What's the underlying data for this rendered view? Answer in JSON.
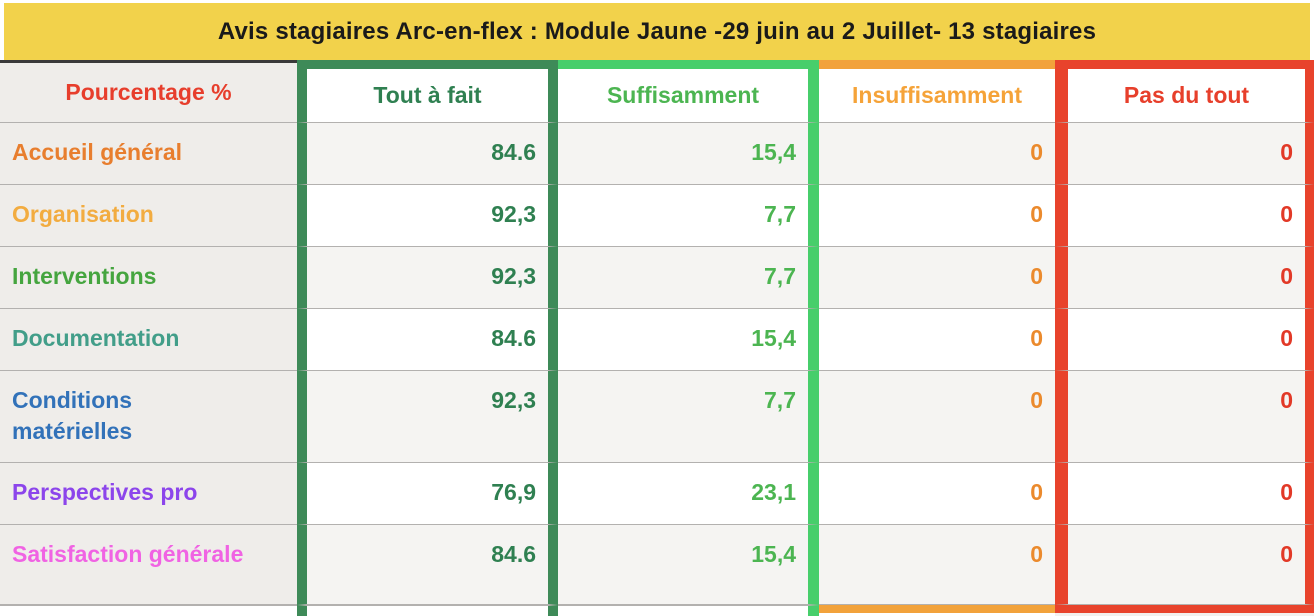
{
  "banner": {
    "title": "Avis stagiaires Arc-en-flex : Module Jaune -29 juin au 2 Juillet- 13 stagiaires",
    "bg_color": "#F2D24B",
    "text_color": "#1A1A1A"
  },
  "header": {
    "corner": {
      "label": "Pourcentage %",
      "text_color": "#E73E2C"
    },
    "columns": [
      {
        "label": "Tout à fait",
        "text_color": "#2F8051",
        "border_color": "#3E8A58"
      },
      {
        "label": "Suffisamment",
        "text_color": "#4CB551",
        "border_color": "#47CE6B"
      },
      {
        "label": "Insuffisamment",
        "text_color": "#F5A339",
        "border_color": "#F2A23B"
      },
      {
        "label": "Pas du tout",
        "text_color": "#E73F2B",
        "border_color": "#E8432C"
      }
    ]
  },
  "value_colors": [
    "#2F8051",
    "#4CB551",
    "#EB8A2D",
    "#E23927"
  ],
  "rows": [
    {
      "label": "Accueil général",
      "label_color": "#E87E2E",
      "values": [
        "84.6",
        "15,4",
        "0",
        "0"
      ]
    },
    {
      "label": "Organisation",
      "label_color": "#F2AC40",
      "values": [
        "92,3",
        "7,7",
        "0",
        "0"
      ]
    },
    {
      "label": "Interventions",
      "label_color": "#45A53F",
      "values": [
        "92,3",
        "7,7",
        "0",
        "0"
      ]
    },
    {
      "label": "Documentation",
      "label_color": "#429E89",
      "values": [
        "84.6",
        "15,4",
        "0",
        "0"
      ]
    },
    {
      "label": "Conditions matérielles",
      "label_color": "#3272B9",
      "values": [
        "92,3",
        "7,7",
        "0",
        "0"
      ]
    },
    {
      "label": "Perspectives pro",
      "label_color": "#8C45EB",
      "values": [
        "76,9",
        "23,1",
        "0",
        "0"
      ]
    },
    {
      "label": "Satisfaction générale",
      "label_color": "#F063E3",
      "values": [
        "84.6",
        "15,4",
        "0",
        "0"
      ]
    }
  ],
  "chart_data": {
    "type": "table",
    "title": "Avis stagiaires Arc-en-flex : Module Jaune -29 juin au 2 Juillet- 13 stagiaires",
    "unit": "Pourcentage %",
    "columns": [
      "Tout à fait",
      "Suffisamment",
      "Insuffisamment",
      "Pas du tout"
    ],
    "row_labels": [
      "Accueil général",
      "Organisation",
      "Interventions",
      "Documentation",
      "Conditions matérielles",
      "Perspectives pro",
      "Satisfaction générale"
    ],
    "values": [
      [
        84.6,
        15.4,
        0,
        0
      ],
      [
        92.3,
        7.7,
        0,
        0
      ],
      [
        92.3,
        7.7,
        0,
        0
      ],
      [
        84.6,
        15.4,
        0,
        0
      ],
      [
        92.3,
        7.7,
        0,
        0
      ],
      [
        76.9,
        23.1,
        0,
        0
      ],
      [
        84.6,
        15.4,
        0,
        0
      ]
    ]
  }
}
